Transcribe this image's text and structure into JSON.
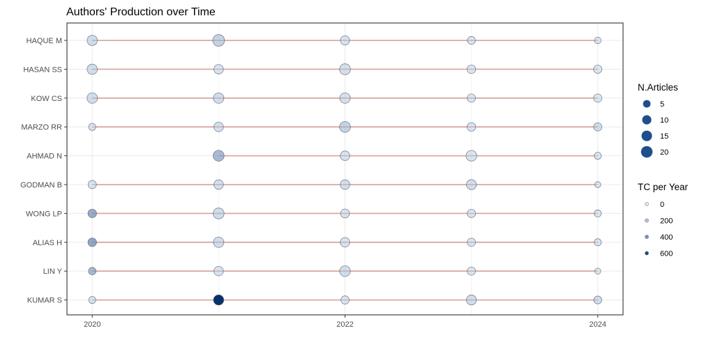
{
  "chart_data": {
    "type": "scatter",
    "title": "Authors' Production over Time",
    "xlabel": "",
    "ylabel": "",
    "x_ticks": [
      2020,
      2022,
      2024
    ],
    "xlim": [
      2019.8,
      2024.2
    ],
    "authors": [
      "HAQUE M",
      "HASAN SS",
      "KOW CS",
      "MARZO RR",
      "AHMAD N",
      "GODMAN B",
      "WONG LP",
      "ALIAS H",
      "LIN Y",
      "KUMAR S"
    ],
    "grid": true,
    "colors": {
      "line": "#d9a8a2",
      "point": "#08306b",
      "grid": "#ebebeb",
      "panel_border": "#333333"
    },
    "points": [
      {
        "author": "HAQUE M",
        "year": 2020,
        "articles": 14,
        "tc_per_year": 100
      },
      {
        "author": "HAQUE M",
        "year": 2021,
        "articles": 21,
        "tc_per_year": 150
      },
      {
        "author": "HAQUE M",
        "year": 2022,
        "articles": 10,
        "tc_per_year": 60
      },
      {
        "author": "HAQUE M",
        "year": 2023,
        "articles": 6,
        "tc_per_year": 50
      },
      {
        "author": "HAQUE M",
        "year": 2024,
        "articles": 3,
        "tc_per_year": 40
      },
      {
        "author": "HASAN SS",
        "year": 2020,
        "articles": 14,
        "tc_per_year": 100
      },
      {
        "author": "HASAN SS",
        "year": 2021,
        "articles": 11,
        "tc_per_year": 60
      },
      {
        "author": "HASAN SS",
        "year": 2022,
        "articles": 17,
        "tc_per_year": 80
      },
      {
        "author": "HASAN SS",
        "year": 2023,
        "articles": 8,
        "tc_per_year": 50
      },
      {
        "author": "HASAN SS",
        "year": 2024,
        "articles": 7,
        "tc_per_year": 40
      },
      {
        "author": "KOW CS",
        "year": 2020,
        "articles": 15,
        "tc_per_year": 100
      },
      {
        "author": "KOW CS",
        "year": 2021,
        "articles": 15,
        "tc_per_year": 100
      },
      {
        "author": "KOW CS",
        "year": 2022,
        "articles": 15,
        "tc_per_year": 80
      },
      {
        "author": "KOW CS",
        "year": 2023,
        "articles": 7,
        "tc_per_year": 50
      },
      {
        "author": "KOW CS",
        "year": 2024,
        "articles": 7,
        "tc_per_year": 40
      },
      {
        "author": "MARZO RR",
        "year": 2020,
        "articles": 4,
        "tc_per_year": 60
      },
      {
        "author": "MARZO RR",
        "year": 2021,
        "articles": 11,
        "tc_per_year": 80
      },
      {
        "author": "MARZO RR",
        "year": 2022,
        "articles": 17,
        "tc_per_year": 150
      },
      {
        "author": "MARZO RR",
        "year": 2023,
        "articles": 8,
        "tc_per_year": 60
      },
      {
        "author": "MARZO RR",
        "year": 2024,
        "articles": 7,
        "tc_per_year": 100
      },
      {
        "author": "AHMAD N",
        "year": 2021,
        "articles": 17,
        "tc_per_year": 250
      },
      {
        "author": "AHMAD N",
        "year": 2022,
        "articles": 11,
        "tc_per_year": 60
      },
      {
        "author": "AHMAD N",
        "year": 2023,
        "articles": 16,
        "tc_per_year": 60
      },
      {
        "author": "AHMAD N",
        "year": 2024,
        "articles": 4,
        "tc_per_year": 40
      },
      {
        "author": "GODMAN B",
        "year": 2020,
        "articles": 7,
        "tc_per_year": 60
      },
      {
        "author": "GODMAN B",
        "year": 2021,
        "articles": 11,
        "tc_per_year": 80
      },
      {
        "author": "GODMAN B",
        "year": 2022,
        "articles": 11,
        "tc_per_year": 80
      },
      {
        "author": "GODMAN B",
        "year": 2023,
        "articles": 13,
        "tc_per_year": 90
      },
      {
        "author": "GODMAN B",
        "year": 2024,
        "articles": 2,
        "tc_per_year": 40
      },
      {
        "author": "WONG LP",
        "year": 2020,
        "articles": 8,
        "tc_per_year": 300
      },
      {
        "author": "WONG LP",
        "year": 2021,
        "articles": 17,
        "tc_per_year": 100
      },
      {
        "author": "WONG LP",
        "year": 2022,
        "articles": 9,
        "tc_per_year": 60
      },
      {
        "author": "WONG LP",
        "year": 2023,
        "articles": 7,
        "tc_per_year": 50
      },
      {
        "author": "WONG LP",
        "year": 2024,
        "articles": 4,
        "tc_per_year": 40
      },
      {
        "author": "ALIAS H",
        "year": 2020,
        "articles": 8,
        "tc_per_year": 320
      },
      {
        "author": "ALIAS H",
        "year": 2021,
        "articles": 15,
        "tc_per_year": 100
      },
      {
        "author": "ALIAS H",
        "year": 2022,
        "articles": 11,
        "tc_per_year": 60
      },
      {
        "author": "ALIAS H",
        "year": 2023,
        "articles": 7,
        "tc_per_year": 50
      },
      {
        "author": "ALIAS H",
        "year": 2024,
        "articles": 4,
        "tc_per_year": 40
      },
      {
        "author": "LIN Y",
        "year": 2020,
        "articles": 5,
        "tc_per_year": 250
      },
      {
        "author": "LIN Y",
        "year": 2021,
        "articles": 11,
        "tc_per_year": 60
      },
      {
        "author": "LIN Y",
        "year": 2022,
        "articles": 16,
        "tc_per_year": 100
      },
      {
        "author": "LIN Y",
        "year": 2023,
        "articles": 7,
        "tc_per_year": 50
      },
      {
        "author": "LIN Y",
        "year": 2024,
        "articles": 2,
        "tc_per_year": 40
      },
      {
        "author": "KUMAR S",
        "year": 2020,
        "articles": 4,
        "tc_per_year": 60
      },
      {
        "author": "KUMAR S",
        "year": 2021,
        "articles": 14,
        "tc_per_year": 650
      },
      {
        "author": "KUMAR S",
        "year": 2022,
        "articles": 7,
        "tc_per_year": 50
      },
      {
        "author": "KUMAR S",
        "year": 2023,
        "articles": 13,
        "tc_per_year": 100
      },
      {
        "author": "KUMAR S",
        "year": 2024,
        "articles": 6,
        "tc_per_year": 100
      }
    ],
    "legend": {
      "placement": "right",
      "size_title": "N.Articles",
      "size_values": [
        5,
        10,
        15,
        20
      ],
      "color_title": "TC per Year",
      "color_values": [
        0,
        200,
        400,
        600
      ]
    }
  }
}
